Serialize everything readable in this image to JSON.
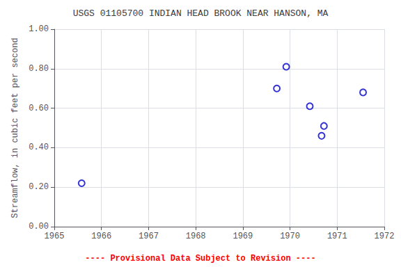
{
  "chart_data": {
    "type": "scatter",
    "title": "USGS 01105700 INDIAN HEAD BROOK NEAR HANSON, MA",
    "ylabel": "Streamflow, in cubic feet per second",
    "x": [
      1965.58,
      1969.72,
      1969.92,
      1970.42,
      1970.67,
      1970.72,
      1971.55
    ],
    "values": [
      0.22,
      0.7,
      0.81,
      0.61,
      0.46,
      0.51,
      0.68
    ],
    "color": "#0000CC",
    "marker": "circle",
    "xlim": [
      1965,
      1972
    ],
    "xticks": [
      1965,
      1966,
      1967,
      1968,
      1969,
      1970,
      1971,
      1972
    ],
    "ylim": [
      0,
      1
    ],
    "yticks": [
      {
        "value": 0,
        "label": "0.00"
      },
      {
        "value": 0.2,
        "label": "0.20"
      },
      {
        "value": 0.4,
        "label": "0.40"
      },
      {
        "value": 0.6,
        "label": "0.60"
      },
      {
        "value": 0.8,
        "label": "0.80"
      },
      {
        "value": 1,
        "label": "1.00"
      }
    ],
    "grid": true,
    "annotations": [
      {
        "text": "---- Provisional Data Subject to Revision ----",
        "color": "#ff0000"
      }
    ]
  }
}
